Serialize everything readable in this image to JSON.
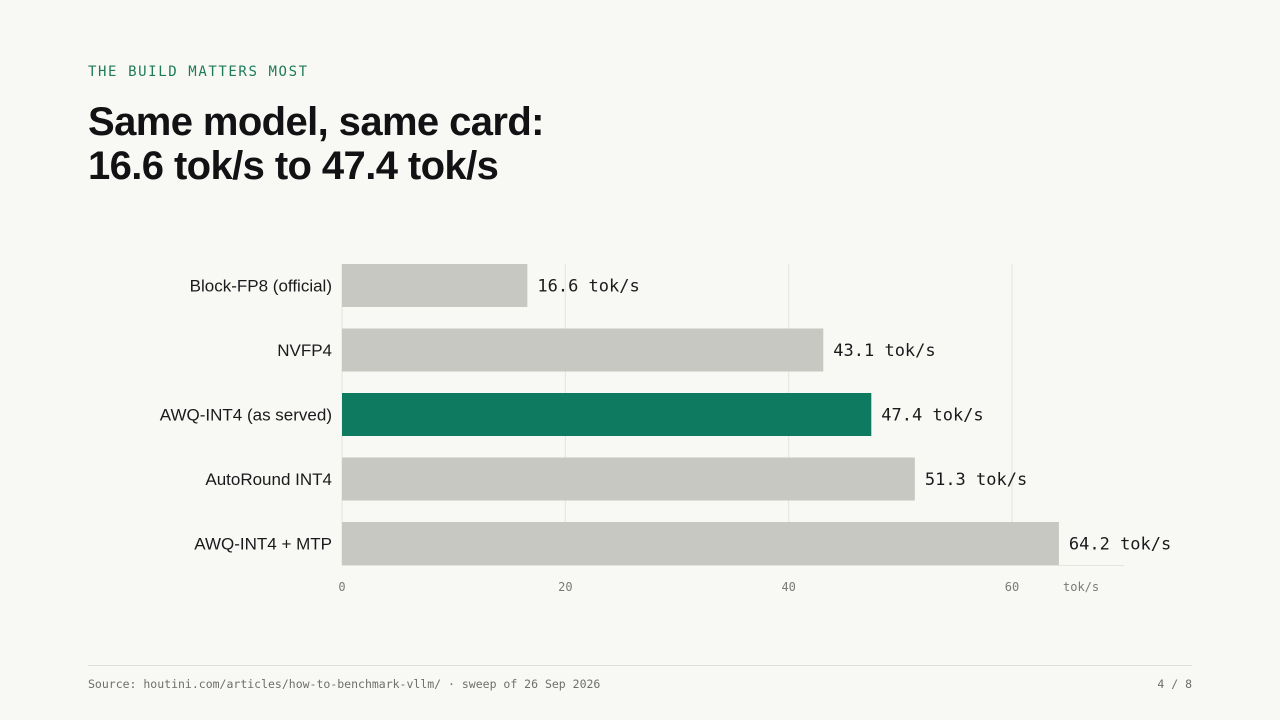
{
  "slide": {
    "eyebrow": "THE BUILD MATTERS MOST",
    "title_line1": "Same model, same card:",
    "title_line2": "16.6 tok/s to 47.4 tok/s",
    "source": "Source: houtini.com/articles/how-to-benchmark-vllm/ · sweep of 26 Sep 2026",
    "page": "4 / 8"
  },
  "colors": {
    "background": "#f8f8f4",
    "accent": "#0e7a5f",
    "bar": "#c8c8c2",
    "gridline": "#e4e4de",
    "eyebrow": "#1f7a5c"
  },
  "chart_data": {
    "type": "bar",
    "orientation": "horizontal",
    "categories": [
      "Block-FP8 (official)",
      "NVFP4",
      "AWQ-INT4 (as served)",
      "AutoRound INT4",
      "AWQ-INT4 + MTP"
    ],
    "values": [
      16.6,
      43.1,
      47.4,
      51.3,
      64.2
    ],
    "value_labels": [
      "16.6 tok/s",
      "43.1 tok/s",
      "47.4 tok/s",
      "51.3 tok/s",
      "64.2 tok/s"
    ],
    "highlight_index": 2,
    "x_ticks": [
      0,
      20,
      40,
      60
    ],
    "x_tick_labels": [
      "0",
      "20",
      "40",
      "60"
    ],
    "x_unit": "tok/s",
    "xlim": [
      0,
      70
    ],
    "grid": true
  }
}
